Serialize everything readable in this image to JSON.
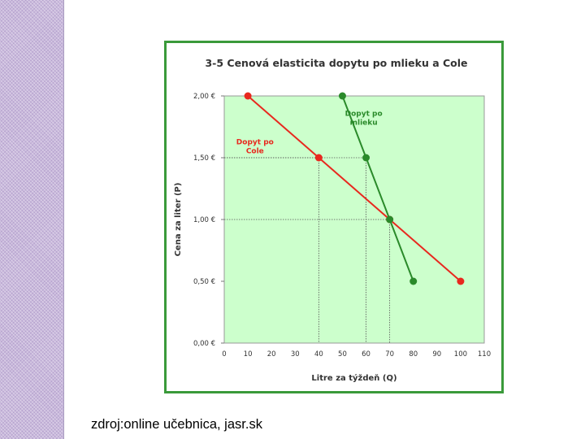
{
  "colors": {
    "side_strip": "#c9b9dc",
    "frame_border": "#3a9a3a",
    "plot_background": "#ccffcc",
    "cola_series": "#e8281e",
    "milk_series": "#2a8a2a"
  },
  "source_text": "zdroj:online učebnica, jasr.sk",
  "chart_data": {
    "type": "line",
    "title": "3-5 Cenová elasticita dopytu po mlieku a Cole",
    "xlabel": "Litre za týždeň (Q)",
    "ylabel": "Cena za liter (P)",
    "xlim": [
      0,
      110
    ],
    "ylim": [
      0,
      2
    ],
    "x_ticks": [
      0,
      10,
      20,
      30,
      40,
      50,
      60,
      70,
      80,
      90,
      100,
      110
    ],
    "y_ticks": [
      0,
      0.5,
      1,
      1.5,
      2
    ],
    "y_tick_labels": [
      "0,00 €",
      "0,50 €",
      "1,00 €",
      "1,50 €",
      "2,00 €"
    ],
    "grid": false,
    "series": [
      {
        "name": "Dopyt po Cole",
        "label_lines": [
          "Dopyt po",
          "Cole"
        ],
        "label_anchor": {
          "x": 13,
          "y": 1.61
        },
        "color": "#e8281e",
        "x": [
          10,
          40,
          70,
          100
        ],
        "y": [
          2.0,
          1.5,
          1.0,
          0.5
        ]
      },
      {
        "name": "Dopyt po mlieku",
        "label_lines": [
          "Dopyt po",
          "mlieku"
        ],
        "label_anchor": {
          "x": 59,
          "y": 1.84
        },
        "color": "#2a8a2a",
        "x": [
          50,
          60,
          70,
          80
        ],
        "y": [
          2.0,
          1.5,
          1.0,
          0.5
        ]
      }
    ],
    "reference_lines": [
      {
        "x": 40,
        "y": 1.5
      },
      {
        "x": 60,
        "y": 1.5
      },
      {
        "x": 70,
        "y": 1.0
      }
    ]
  }
}
